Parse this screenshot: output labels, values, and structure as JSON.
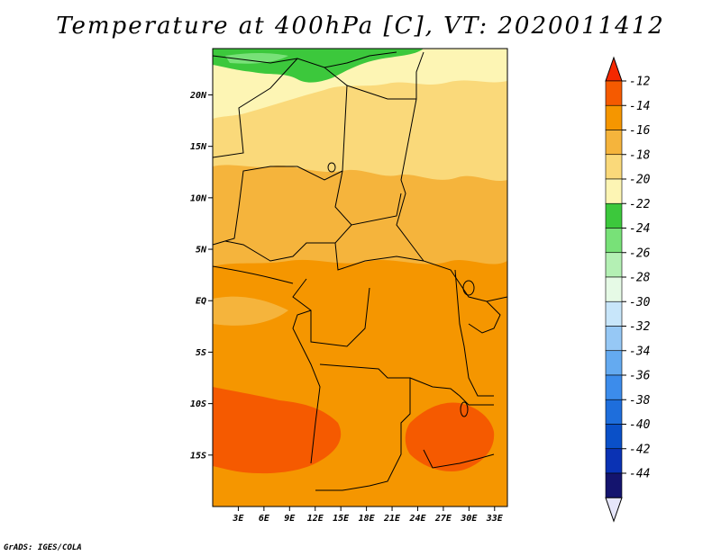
{
  "title": "Temperature at 400hPa [C], VT: 2020011412",
  "credit": "GrADS: IGES/COLA",
  "map": {
    "lon_range": [
      0,
      34.5
    ],
    "lat_range": [
      -20,
      24.5
    ],
    "lat_ticks": [
      {
        "value": 20,
        "label": "20N"
      },
      {
        "value": 15,
        "label": "15N"
      },
      {
        "value": 10,
        "label": "10N"
      },
      {
        "value": 5,
        "label": "5N"
      },
      {
        "value": 0,
        "label": "EQ"
      },
      {
        "value": -5,
        "label": "5S"
      },
      {
        "value": -10,
        "label": "10S"
      },
      {
        "value": -15,
        "label": "15S"
      }
    ],
    "lon_ticks": [
      {
        "value": 3,
        "label": "3E"
      },
      {
        "value": 6,
        "label": "6E"
      },
      {
        "value": 9,
        "label": "9E"
      },
      {
        "value": 12,
        "label": "12E"
      },
      {
        "value": 15,
        "label": "15E"
      },
      {
        "value": 18,
        "label": "18E"
      },
      {
        "value": 21,
        "label": "21E"
      },
      {
        "value": 24,
        "label": "24E"
      },
      {
        "value": 27,
        "label": "27E"
      },
      {
        "value": 30,
        "label": "30E"
      },
      {
        "value": 33,
        "label": "33E"
      }
    ]
  },
  "colorbar": {
    "colors_top_to_bottom": [
      "#f55a00",
      "#f59600",
      "#f5b43c",
      "#fad97a",
      "#fdf5b4",
      "#3cc83c",
      "#78e178",
      "#b4f0b4",
      "#e6fae6",
      "#c8e6fa",
      "#96c8f5",
      "#64aaf0",
      "#3c8ceb",
      "#1e6edc",
      "#0a50c8",
      "#0a32b4",
      "#14146e"
    ],
    "top_cap_color": "#f52800",
    "bottom_cap_color": "#e6e6fa",
    "labels": [
      "-12",
      "-14",
      "-16",
      "-18",
      "-20",
      "-22",
      "-24",
      "-26",
      "-28",
      "-30",
      "-32",
      "-34",
      "-36",
      "-38",
      "-40",
      "-42",
      "-44"
    ]
  }
}
